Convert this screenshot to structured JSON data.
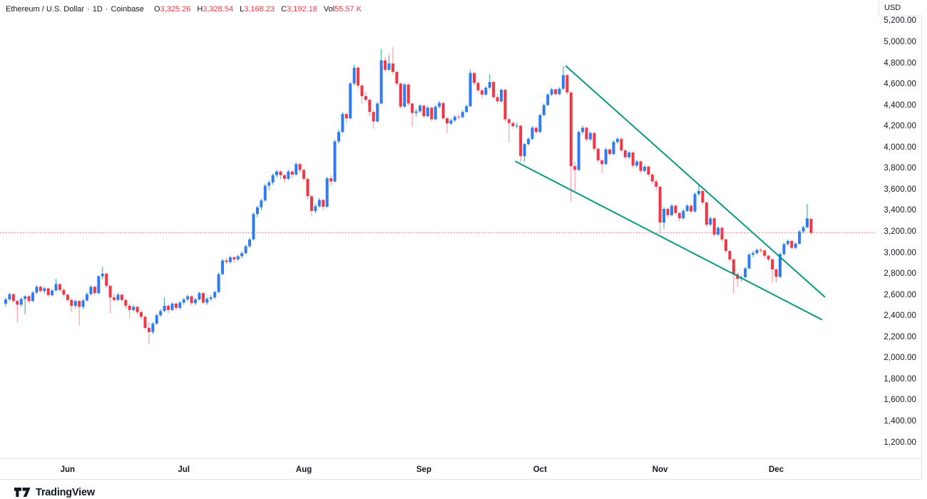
{
  "header": {
    "symbol": "Ethereum / U.S. Dollar",
    "separator": "·",
    "interval": "1D",
    "exchange": "Coinbase",
    "ohlc": [
      {
        "label": "O",
        "value": "3,325.26"
      },
      {
        "label": "H",
        "value": "3,328.54"
      },
      {
        "label": "L",
        "value": "3,168.23"
      },
      {
        "label": "C",
        "value": "3,192.18"
      }
    ],
    "volume": {
      "label": "Vol",
      "value": "55.57 K"
    }
  },
  "price_axis": {
    "currency": "USD",
    "ticks": [
      {
        "value": 5200,
        "label": "5,200.00"
      },
      {
        "value": 5000,
        "label": "5,000.00"
      },
      {
        "value": 4800,
        "label": "4,800.00"
      },
      {
        "value": 4600,
        "label": "4,600.00"
      },
      {
        "value": 4400,
        "label": "4,400.00"
      },
      {
        "value": 4200,
        "label": "4,200.00"
      },
      {
        "value": 4000,
        "label": "4,000.00"
      },
      {
        "value": 3800,
        "label": "3,800.00"
      },
      {
        "value": 3600,
        "label": "3,600.00"
      },
      {
        "value": 3400,
        "label": "3,400.00"
      },
      {
        "value": 3200,
        "label": "3,200.00"
      },
      {
        "value": 3000,
        "label": "3,000.00"
      },
      {
        "value": 2800,
        "label": "2,800.00"
      },
      {
        "value": 2600,
        "label": "2,600.00"
      },
      {
        "value": 2400,
        "label": "2,400.00"
      },
      {
        "value": 2200,
        "label": "2,200.00"
      },
      {
        "value": 2000,
        "label": "2,000.00"
      },
      {
        "value": 1800,
        "label": "1,800.00"
      },
      {
        "value": 1600,
        "label": "1,600.00"
      },
      {
        "value": 1400,
        "label": "1,400.00"
      },
      {
        "value": 1200,
        "label": "1,200.00"
      }
    ]
  },
  "time_axis": {
    "ticks": [
      {
        "label": "Jun",
        "index": 16
      },
      {
        "label": "Jul",
        "index": 46
      },
      {
        "label": "Aug",
        "index": 77
      },
      {
        "label": "Sep",
        "index": 108
      },
      {
        "label": "Oct",
        "index": 138
      },
      {
        "label": "Nov",
        "index": 169
      },
      {
        "label": "Dec",
        "index": 199
      }
    ]
  },
  "footer": {
    "brand": "TradingView"
  },
  "colors": {
    "background": "#ffffff",
    "up_body": "#2f7bf5",
    "up_wick": "#26a69a",
    "down_body": "#f23645",
    "down_wick": "#f58e9b",
    "trendline": "#089981",
    "price_line": "#f23645",
    "axis_text": "#131722",
    "border": "#e0e3eb"
  },
  "chart_data": {
    "type": "candlestick",
    "title": "Ethereum / U.S. Dollar · 1D · Coinbase",
    "symbol": "ETHUSD",
    "interval": "1D",
    "x_unit": "daily candles, mid-May through Dec 10 (month ticks at time_axis.ticks indices)",
    "y_axis": {
      "unit": "USD",
      "min": 1200,
      "max": 5200,
      "step": 200,
      "grid": false,
      "side": "right"
    },
    "price_line_value": 3192.18,
    "last_candle": {
      "open": 3325.26,
      "high": 3328.54,
      "low": 3168.23,
      "close": 3192.18,
      "volume": "55.57 K"
    },
    "trendlines": [
      {
        "from_index": 144.7,
        "from_price": 4775,
        "to_index": 211.5,
        "to_price": 2585
      },
      {
        "from_index": 131.7,
        "from_price": 3870,
        "to_index": 210.7,
        "to_price": 2370
      }
    ],
    "candles_format": [
      "open",
      "high",
      "low",
      "close"
    ],
    "candles": [
      [
        2520,
        2575,
        2495,
        2560
      ],
      [
        2560,
        2625,
        2545,
        2610
      ],
      [
        2610,
        2620,
        2530,
        2545
      ],
      [
        2545,
        2560,
        2340,
        2510
      ],
      [
        2510,
        2580,
        2490,
        2565
      ],
      [
        2565,
        2600,
        2420,
        2590
      ],
      [
        2590,
        2605,
        2525,
        2545
      ],
      [
        2545,
        2640,
        2535,
        2625
      ],
      [
        2625,
        2695,
        2610,
        2680
      ],
      [
        2680,
        2690,
        2620,
        2640
      ],
      [
        2640,
        2680,
        2615,
        2665
      ],
      [
        2665,
        2670,
        2580,
        2600
      ],
      [
        2600,
        2660,
        2590,
        2645
      ],
      [
        2645,
        2755,
        2635,
        2705
      ],
      [
        2705,
        2715,
        2630,
        2650
      ],
      [
        2650,
        2665,
        2585,
        2605
      ],
      [
        2605,
        2615,
        2535,
        2555
      ],
      [
        2555,
        2570,
        2440,
        2500
      ],
      [
        2500,
        2560,
        2480,
        2545
      ],
      [
        2545,
        2555,
        2310,
        2490
      ],
      [
        2490,
        2565,
        2470,
        2550
      ],
      [
        2550,
        2625,
        2540,
        2610
      ],
      [
        2610,
        2695,
        2600,
        2680
      ],
      [
        2680,
        2690,
        2600,
        2620
      ],
      [
        2620,
        2790,
        2610,
        2780
      ],
      [
        2780,
        2870,
        2750,
        2805
      ],
      [
        2805,
        2815,
        2670,
        2690
      ],
      [
        2690,
        2700,
        2430,
        2580
      ],
      [
        2580,
        2615,
        2540,
        2555
      ],
      [
        2555,
        2625,
        2545,
        2605
      ],
      [
        2605,
        2615,
        2535,
        2555
      ],
      [
        2555,
        2565,
        2470,
        2500
      ],
      [
        2500,
        2520,
        2380,
        2460
      ],
      [
        2460,
        2510,
        2445,
        2490
      ],
      [
        2490,
        2500,
        2415,
        2440
      ],
      [
        2440,
        2460,
        2370,
        2395
      ],
      [
        2395,
        2405,
        2270,
        2290
      ],
      [
        2290,
        2345,
        2135,
        2250
      ],
      [
        2250,
        2345,
        2230,
        2330
      ],
      [
        2330,
        2425,
        2320,
        2410
      ],
      [
        2410,
        2470,
        2395,
        2450
      ],
      [
        2450,
        2580,
        2440,
        2500
      ],
      [
        2500,
        2515,
        2430,
        2460
      ],
      [
        2460,
        2535,
        2450,
        2520
      ],
      [
        2520,
        2530,
        2455,
        2480
      ],
      [
        2480,
        2545,
        2465,
        2530
      ],
      [
        2530,
        2575,
        2510,
        2560
      ],
      [
        2560,
        2605,
        2540,
        2590
      ],
      [
        2590,
        2600,
        2505,
        2525
      ],
      [
        2525,
        2575,
        2505,
        2560
      ],
      [
        2560,
        2635,
        2550,
        2620
      ],
      [
        2620,
        2630,
        2515,
        2530
      ],
      [
        2530,
        2580,
        2510,
        2565
      ],
      [
        2565,
        2600,
        2545,
        2580
      ],
      [
        2580,
        2645,
        2565,
        2630
      ],
      [
        2630,
        2815,
        2620,
        2800
      ],
      [
        2800,
        2945,
        2790,
        2930
      ],
      [
        2930,
        2955,
        2890,
        2915
      ],
      [
        2915,
        2975,
        2900,
        2960
      ],
      [
        2960,
        2970,
        2910,
        2940
      ],
      [
        2940,
        2985,
        2925,
        2970
      ],
      [
        2970,
        3015,
        2950,
        3000
      ],
      [
        3000,
        3080,
        2990,
        3065
      ],
      [
        3065,
        3145,
        3050,
        3130
      ],
      [
        3130,
        3385,
        3120,
        3370
      ],
      [
        3370,
        3450,
        3340,
        3435
      ],
      [
        3435,
        3515,
        3410,
        3500
      ],
      [
        3500,
        3655,
        3490,
        3640
      ],
      [
        3640,
        3690,
        3600,
        3670
      ],
      [
        3670,
        3755,
        3650,
        3740
      ],
      [
        3740,
        3790,
        3720,
        3775
      ],
      [
        3775,
        3785,
        3700,
        3740
      ],
      [
        3740,
        3750,
        3670,
        3705
      ],
      [
        3705,
        3790,
        3695,
        3775
      ],
      [
        3775,
        3785,
        3710,
        3745
      ],
      [
        3745,
        3860,
        3735,
        3845
      ],
      [
        3845,
        3855,
        3760,
        3790
      ],
      [
        3790,
        3800,
        3680,
        3705
      ],
      [
        3705,
        3715,
        3510,
        3540
      ],
      [
        3540,
        3555,
        3350,
        3400
      ],
      [
        3400,
        3465,
        3380,
        3445
      ],
      [
        3445,
        3525,
        3430,
        3505
      ],
      [
        3505,
        3515,
        3405,
        3440
      ],
      [
        3440,
        3725,
        3430,
        3710
      ],
      [
        3710,
        3740,
        3640,
        3680
      ],
      [
        3680,
        4075,
        3670,
        4060
      ],
      [
        4060,
        4175,
        4040,
        4150
      ],
      [
        4150,
        4340,
        4140,
        4320
      ],
      [
        4320,
        4335,
        4235,
        4280
      ],
      [
        4280,
        4625,
        4270,
        4610
      ],
      [
        4610,
        4790,
        4590,
        4760
      ],
      [
        4760,
        4770,
        4560,
        4590
      ],
      [
        4590,
        4605,
        4420,
        4490
      ],
      [
        4490,
        4530,
        4435,
        4455
      ],
      [
        4455,
        4465,
        4300,
        4340
      ],
      [
        4340,
        4360,
        4180,
        4250
      ],
      [
        4250,
        4435,
        4240,
        4420
      ],
      [
        4420,
        4940,
        4410,
        4830
      ],
      [
        4830,
        4860,
        4720,
        4740
      ],
      [
        4740,
        4880,
        4730,
        4800
      ],
      [
        4800,
        4955,
        4700,
        4720
      ],
      [
        4720,
        4735,
        4590,
        4610
      ],
      [
        4610,
        4620,
        4370,
        4390
      ],
      [
        4390,
        4615,
        4380,
        4600
      ],
      [
        4600,
        4610,
        4400,
        4420
      ],
      [
        4420,
        4430,
        4200,
        4330
      ],
      [
        4330,
        4370,
        4300,
        4345
      ],
      [
        4345,
        4415,
        4330,
        4400
      ],
      [
        4400,
        4410,
        4285,
        4300
      ],
      [
        4300,
        4395,
        4290,
        4380
      ],
      [
        4380,
        4390,
        4250,
        4270
      ],
      [
        4270,
        4405,
        4260,
        4390
      ],
      [
        4390,
        4445,
        4370,
        4425
      ],
      [
        4425,
        4435,
        4260,
        4280
      ],
      [
        4280,
        4290,
        4140,
        4230
      ],
      [
        4230,
        4275,
        4215,
        4260
      ],
      [
        4260,
        4310,
        4245,
        4295
      ],
      [
        4295,
        4320,
        4265,
        4290
      ],
      [
        4290,
        4355,
        4280,
        4340
      ],
      [
        4340,
        4410,
        4330,
        4395
      ],
      [
        4395,
        4740,
        4385,
        4710
      ],
      [
        4710,
        4720,
        4595,
        4615
      ],
      [
        4615,
        4625,
        4525,
        4545
      ],
      [
        4545,
        4555,
        4470,
        4505
      ],
      [
        4505,
        4585,
        4495,
        4570
      ],
      [
        4570,
        4700,
        4555,
        4625
      ],
      [
        4625,
        4635,
        4460,
        4480
      ],
      [
        4480,
        4510,
        4420,
        4440
      ],
      [
        4440,
        4565,
        4430,
        4550
      ],
      [
        4550,
        4560,
        4250,
        4270
      ],
      [
        4270,
        4280,
        4050,
        4235
      ],
      [
        4235,
        4250,
        4180,
        4205
      ],
      [
        4205,
        4240,
        4185,
        4210
      ],
      [
        4210,
        4220,
        3860,
        3920
      ],
      [
        3920,
        4045,
        3870,
        4035
      ],
      [
        4035,
        4100,
        4020,
        4085
      ],
      [
        4085,
        4205,
        4075,
        4190
      ],
      [
        4190,
        4200,
        4130,
        4150
      ],
      [
        4150,
        4325,
        4140,
        4310
      ],
      [
        4310,
        4420,
        4300,
        4405
      ],
      [
        4405,
        4520,
        4395,
        4505
      ],
      [
        4505,
        4570,
        4490,
        4555
      ],
      [
        4555,
        4565,
        4495,
        4510
      ],
      [
        4510,
        4575,
        4500,
        4560
      ],
      [
        4560,
        4775,
        4550,
        4690
      ],
      [
        4690,
        4700,
        4505,
        4525
      ],
      [
        4525,
        4535,
        3490,
        3825
      ],
      [
        3825,
        3865,
        3575,
        3790
      ],
      [
        3790,
        4165,
        3780,
        4150
      ],
      [
        4150,
        4210,
        4130,
        4190
      ],
      [
        4190,
        4200,
        4060,
        4080
      ],
      [
        4080,
        4155,
        4065,
        4140
      ],
      [
        4140,
        4150,
        3970,
        3990
      ],
      [
        3990,
        4000,
        3860,
        3880
      ],
      [
        3880,
        3895,
        3760,
        3845
      ],
      [
        3845,
        4000,
        3835,
        3985
      ],
      [
        3985,
        3995,
        3920,
        3940
      ],
      [
        3940,
        4070,
        3930,
        4055
      ],
      [
        4055,
        4100,
        4035,
        4085
      ],
      [
        4085,
        4095,
        3955,
        3975
      ],
      [
        3975,
        3985,
        3890,
        3910
      ],
      [
        3910,
        3970,
        3895,
        3955
      ],
      [
        3955,
        3965,
        3810,
        3830
      ],
      [
        3830,
        3885,
        3815,
        3870
      ],
      [
        3870,
        3880,
        3760,
        3780
      ],
      [
        3780,
        3835,
        3765,
        3820
      ],
      [
        3820,
        3830,
        3725,
        3745
      ],
      [
        3745,
        3755,
        3660,
        3680
      ],
      [
        3680,
        3700,
        3600,
        3630
      ],
      [
        3630,
        3640,
        3185,
        3290
      ],
      [
        3290,
        3435,
        3230,
        3420
      ],
      [
        3420,
        3430,
        3340,
        3360
      ],
      [
        3360,
        3465,
        3350,
        3450
      ],
      [
        3450,
        3460,
        3360,
        3380
      ],
      [
        3380,
        3390,
        3300,
        3330
      ],
      [
        3330,
        3415,
        3320,
        3400
      ],
      [
        3400,
        3465,
        3390,
        3450
      ],
      [
        3450,
        3460,
        3375,
        3395
      ],
      [
        3395,
        3575,
        3385,
        3560
      ],
      [
        3560,
        3640,
        3545,
        3590
      ],
      [
        3590,
        3600,
        3460,
        3480
      ],
      [
        3480,
        3490,
        3250,
        3270
      ],
      [
        3270,
        3345,
        3255,
        3330
      ],
      [
        3330,
        3340,
        3155,
        3175
      ],
      [
        3175,
        3255,
        3165,
        3240
      ],
      [
        3240,
        3250,
        3110,
        3130
      ],
      [
        3130,
        3140,
        3000,
        3020
      ],
      [
        3020,
        3030,
        2920,
        2940
      ],
      [
        2940,
        2950,
        2620,
        2800
      ],
      [
        2800,
        2815,
        2680,
        2755
      ],
      [
        2755,
        2790,
        2730,
        2770
      ],
      [
        2770,
        2870,
        2760,
        2855
      ],
      [
        2855,
        3000,
        2845,
        2985
      ],
      [
        2985,
        3020,
        2960,
        3000
      ],
      [
        3000,
        3045,
        2985,
        3030
      ],
      [
        3030,
        3050,
        3000,
        3025
      ],
      [
        3025,
        3035,
        2950,
        2975
      ],
      [
        2975,
        2985,
        2915,
        2940
      ],
      [
        2940,
        2950,
        2715,
        2845
      ],
      [
        2845,
        2855,
        2720,
        2775
      ],
      [
        2775,
        3005,
        2765,
        2990
      ],
      [
        2990,
        3100,
        2980,
        3085
      ],
      [
        3085,
        3130,
        3070,
        3115
      ],
      [
        3115,
        3125,
        3035,
        3050
      ],
      [
        3050,
        3100,
        3040,
        3090
      ],
      [
        3090,
        3220,
        3080,
        3205
      ],
      [
        3205,
        3260,
        3190,
        3245
      ],
      [
        3245,
        3465,
        3235,
        3330
      ],
      [
        3325.26,
        3328.54,
        3168.23,
        3192.18
      ]
    ]
  }
}
